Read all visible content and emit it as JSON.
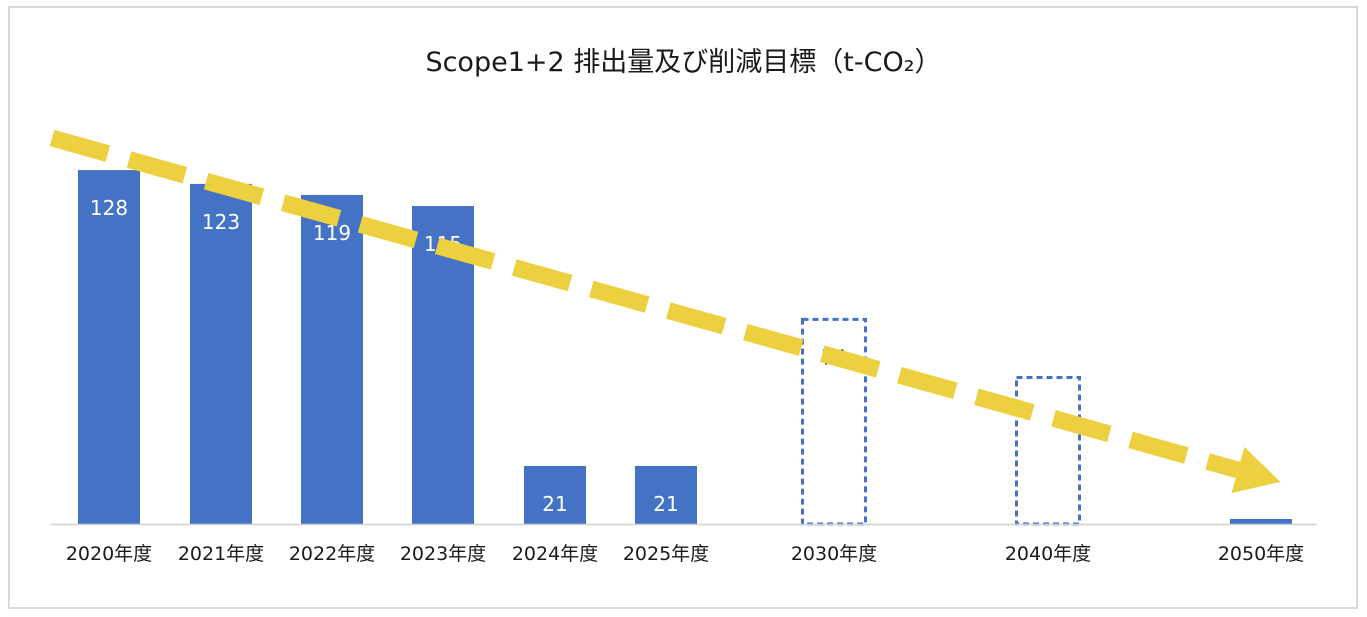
{
  "chart_data": {
    "type": "bar",
    "title": "Scope1+2 排出量及び削減目標（t-CO₂）",
    "xlabel": "",
    "ylabel": "",
    "ylim": [
      0,
      130
    ],
    "grid": false,
    "legend": "none",
    "categories": [
      "2020年度",
      "2021年度",
      "2022年度",
      "2023年度",
      "2024年度",
      "2025年度",
      "2030年度",
      "2040年度",
      "2050年度"
    ],
    "values": [
      128,
      123,
      119,
      115,
      21,
      21,
      74,
      53,
      2
    ],
    "labels": [
      "128",
      "123",
      "119",
      "115",
      "21",
      "21",
      "74",
      "",
      ""
    ],
    "bar_style": [
      "actual",
      "actual",
      "actual",
      "actual",
      "actual",
      "actual",
      "target",
      "target",
      "actual"
    ],
    "annotations": [
      {
        "type": "trend-arrow",
        "style": "dashed",
        "color": "#f2d43c",
        "direction": "down-right"
      }
    ],
    "colors": {
      "bar": "#4472c4",
      "target_outline": "#4472c4",
      "actual_label": "#ffffff",
      "target_label": "#1a1a1a",
      "arrow": "#ecd040",
      "axis": "#d0d0d0"
    }
  }
}
